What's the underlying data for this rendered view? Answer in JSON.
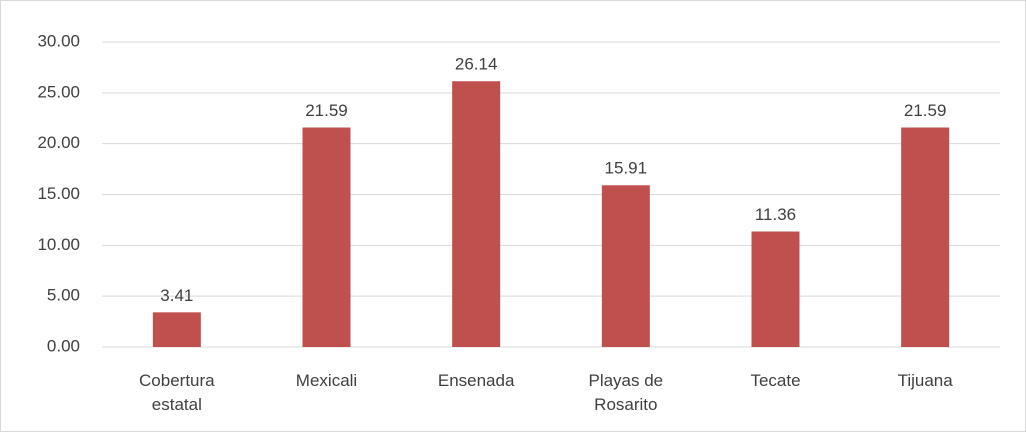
{
  "chart_data": {
    "type": "bar",
    "categories": [
      "Cobertura estatal",
      "Mexicali",
      "Ensenada",
      "Playas de Rosarito",
      "Tecate",
      "Tijuana"
    ],
    "values": [
      3.41,
      21.59,
      26.14,
      15.91,
      11.36,
      21.59
    ],
    "color": "#c0504d",
    "ylim": [
      0,
      30
    ],
    "yticks": [
      {
        "value": 0,
        "label": "0.00"
      },
      {
        "value": 5,
        "label": "5.00"
      },
      {
        "value": 10,
        "label": "10.00"
      },
      {
        "value": 15,
        "label": "15.00"
      },
      {
        "value": 20,
        "label": "20.00"
      },
      {
        "value": 25,
        "label": "25.00"
      },
      {
        "value": 30,
        "label": "30.00"
      }
    ],
    "grid": true
  }
}
